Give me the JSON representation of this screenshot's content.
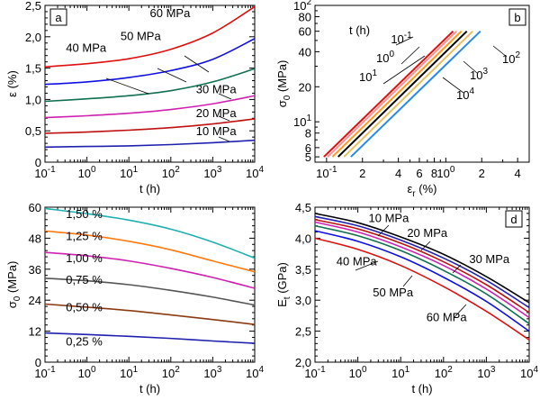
{
  "chart_data": [
    {
      "type": "line",
      "panel_label": "a",
      "xscale": "log",
      "xlim_exp": [
        -1,
        4
      ],
      "x_ticks": [
        {
          "base": "10",
          "exp": "-1"
        },
        {
          "base": "10",
          "exp": "0"
        },
        {
          "base": "10",
          "exp": "1"
        },
        {
          "base": "10",
          "exp": "2"
        },
        {
          "base": "10",
          "exp": "3"
        },
        {
          "base": "10",
          "exp": "4"
        }
      ],
      "xlabel": "t (h)",
      "ylabel": "ε (%)",
      "ylim": [
        0,
        2.5
      ],
      "y_ticks": [
        "0",
        "0,5",
        "1,0",
        "1,5",
        "2,0",
        "2,5"
      ],
      "y_tick_values": [
        0,
        0.5,
        1.0,
        1.5,
        2.0,
        2.5
      ],
      "log_t": [
        -1,
        0,
        1,
        2,
        3,
        4
      ],
      "series": [
        {
          "name": "10 MPa",
          "color": "#2020b0",
          "values": [
            0.24,
            0.25,
            0.26,
            0.28,
            0.31,
            0.35
          ],
          "label_at": [
            2.6,
            0.43
          ]
        },
        {
          "name": "20 MPa",
          "color": "#c01010",
          "values": [
            0.46,
            0.48,
            0.51,
            0.55,
            0.61,
            0.69
          ],
          "label_at": [
            2.6,
            0.72
          ]
        },
        {
          "name": "30 MPa",
          "color": "#d020b0",
          "values": [
            0.71,
            0.74,
            0.78,
            0.84,
            0.93,
            1.06
          ],
          "label_at": [
            2.6,
            1.1
          ]
        },
        {
          "name": "40 MPa",
          "color": "#107050",
          "values": [
            0.97,
            1.01,
            1.06,
            1.14,
            1.28,
            1.49
          ],
          "label_at": [
            -0.5,
            1.76
          ]
        },
        {
          "name": "50 MPa",
          "color": "#1010e0",
          "values": [
            1.24,
            1.28,
            1.35,
            1.46,
            1.64,
            1.97
          ],
          "label_at": [
            0.8,
            1.95
          ]
        },
        {
          "name": "60 MPa",
          "color": "#e01010",
          "values": [
            1.52,
            1.57,
            1.65,
            1.8,
            2.06,
            2.48
          ],
          "label_at": [
            1.5,
            2.31
          ]
        }
      ]
    },
    {
      "type": "line",
      "panel_label": "b",
      "xscale": "log",
      "yscale": "log",
      "xlabel": "εr (%)",
      "xlabel_main": "ε",
      "xlabel_sub": "r",
      "xlabel_rest": " (%)",
      "ylabel": "σ0 (MPa)",
      "xlim": [
        0.08,
        5
      ],
      "ylim": [
        4.5,
        100
      ],
      "x_ticks": [
        {
          "base": "10",
          "exp": "-1"
        },
        {
          "base": "2",
          "exp": ""
        },
        {
          "base": "4",
          "exp": ""
        },
        {
          "base": "6",
          "exp": ""
        },
        {
          "base": "8",
          "exp": ""
        },
        {
          "base": "10",
          "exp": "0"
        },
        {
          "base": "2",
          "exp": ""
        },
        {
          "base": "4",
          "exp": ""
        }
      ],
      "x_tick_values": [
        0.1,
        0.2,
        0.4,
        0.6,
        0.8,
        1,
        2,
        4
      ],
      "y_ticks": [
        {
          "base": "5",
          "exp": ""
        },
        {
          "base": "6",
          "exp": ""
        },
        {
          "base": "8",
          "exp": ""
        },
        {
          "base": "10",
          "exp": "1"
        },
        {
          "base": "20",
          "exp": ""
        },
        {
          "base": "40",
          "exp": ""
        },
        {
          "base": "60",
          "exp": ""
        },
        {
          "base": "80",
          "exp": ""
        },
        {
          "base": "10",
          "exp": "2"
        }
      ],
      "y_tick_values": [
        5,
        6,
        8,
        10,
        20,
        40,
        60,
        80,
        100
      ],
      "legend_title": "t (h)",
      "series": [
        {
          "name": "10⁻¹",
          "base": "10",
          "exp": "-1",
          "color": "#e01010",
          "x": [
            0.095,
            1.15
          ],
          "y": [
            5,
            60
          ]
        },
        {
          "name": "10⁰",
          "base": "10",
          "exp": "0",
          "color": "#ff9090",
          "x": [
            0.102,
            1.23
          ],
          "y": [
            5,
            60
          ]
        },
        {
          "name": "10¹",
          "base": "10",
          "exp": "1",
          "color": "#ff9a20",
          "x": [
            0.112,
            1.35
          ],
          "y": [
            5,
            60
          ]
        },
        {
          "name": "10²",
          "base": "10",
          "exp": "2",
          "color": "#000000",
          "x": [
            0.125,
            1.5
          ],
          "y": [
            5,
            60
          ]
        },
        {
          "name": "10³",
          "base": "10",
          "exp": "3",
          "color": "#e8c060",
          "x": [
            0.14,
            1.68
          ],
          "y": [
            5,
            60
          ]
        },
        {
          "name": "10⁴",
          "base": "10",
          "exp": "4",
          "color": "#2a8ae8",
          "x": [
            0.16,
            1.95
          ],
          "y": [
            5,
            60
          ]
        }
      ]
    },
    {
      "type": "line",
      "panel_label": "c",
      "xscale": "log",
      "xlim_exp": [
        -1,
        4
      ],
      "x_ticks": [
        {
          "base": "10",
          "exp": "-1"
        },
        {
          "base": "10",
          "exp": "0"
        },
        {
          "base": "10",
          "exp": "1"
        },
        {
          "base": "10",
          "exp": "2"
        },
        {
          "base": "10",
          "exp": "3"
        },
        {
          "base": "10",
          "exp": "4"
        }
      ],
      "xlabel": "t (h)",
      "ylabel": "σ0 (MPa)",
      "ylim": [
        0,
        60
      ],
      "y_ticks": [
        "0",
        "12",
        "24",
        "36",
        "48",
        "60"
      ],
      "y_tick_values": [
        0,
        12,
        24,
        36,
        48,
        60
      ],
      "log_t": [
        -1,
        0,
        1,
        2,
        3,
        4
      ],
      "series": [
        {
          "name": "0,25 %",
          "color": "#2020b0",
          "values": [
            11.3,
            10.7,
            10,
            9.2,
            8.2,
            7.3
          ],
          "label_at": [
            -0.5,
            6.5
          ]
        },
        {
          "name": "0,50 %",
          "color": "#8b3a10",
          "values": [
            22.5,
            21.3,
            20,
            18.3,
            16.5,
            14.6
          ],
          "label_at": [
            -0.5,
            19.7
          ]
        },
        {
          "name": "0,75 %",
          "color": "#555555",
          "values": [
            32.5,
            31.5,
            30,
            27.8,
            25.2,
            22.1
          ],
          "label_at": [
            -0.5,
            30.3
          ]
        },
        {
          "name": "1,00 %",
          "color": "#d020b0",
          "values": [
            42.5,
            41.2,
            39.2,
            36.3,
            32.8,
            28.6
          ],
          "label_at": [
            -0.5,
            38.8
          ]
        },
        {
          "name": "1,25 %",
          "color": "#ff7a10",
          "values": [
            50.8,
            49.2,
            46.8,
            43.5,
            39.2,
            35
          ],
          "label_at": [
            -0.5,
            47.2
          ]
        },
        {
          "name": "1,50 %",
          "color": "#20b0b0",
          "values": [
            59.5,
            57.5,
            55,
            51.5,
            46.5,
            40.3
          ],
          "label_at": [
            -0.5,
            55.8
          ]
        }
      ]
    },
    {
      "type": "line",
      "panel_label": "d",
      "xscale": "log",
      "xlim_exp": [
        -1,
        4
      ],
      "x_ticks": [
        {
          "base": "10",
          "exp": "-1"
        },
        {
          "base": "10",
          "exp": "0"
        },
        {
          "base": "10",
          "exp": "1"
        },
        {
          "base": "10",
          "exp": "2"
        },
        {
          "base": "10",
          "exp": "3"
        },
        {
          "base": "10",
          "exp": "4"
        }
      ],
      "xlabel": "t (h)",
      "ylabel": "Et (GPa)",
      "ylim": [
        2.0,
        4.5
      ],
      "y_ticks": [
        "2,0",
        "2,5",
        "3,0",
        "3,5",
        "4,0",
        "4,5"
      ],
      "y_tick_values": [
        2.0,
        2.5,
        3.0,
        3.5,
        4.0,
        4.5
      ],
      "log_t": [
        -1,
        0,
        1,
        2,
        3,
        4
      ],
      "series": [
        {
          "name": "black",
          "color": "#000000",
          "values": [
            4.4,
            4.25,
            4.02,
            3.74,
            3.38,
            2.96
          ],
          "show_label": false
        },
        {
          "name": "10 MPa",
          "color": "#2020b0",
          "values": [
            4.35,
            4.2,
            3.97,
            3.68,
            3.32,
            2.88
          ],
          "label_at": [
            0.25,
            4.26
          ]
        },
        {
          "name": "20 MPa",
          "color": "#c01010",
          "values": [
            4.3,
            4.15,
            3.92,
            3.62,
            3.25,
            2.8
          ],
          "label_at": [
            1.15,
            4.02
          ]
        },
        {
          "name": "30 MPa",
          "color": "#d020b0",
          "values": [
            4.26,
            4.1,
            3.86,
            3.56,
            3.18,
            2.72
          ],
          "label_at": [
            2.6,
            3.6
          ]
        },
        {
          "name": "40 MPa",
          "color": "#107050",
          "values": [
            4.2,
            4.04,
            3.8,
            3.48,
            3.1,
            2.62
          ],
          "label_at": [
            -0.5,
            3.56
          ]
        },
        {
          "name": "50 MPa",
          "color": "#1010e0",
          "values": [
            4.12,
            3.95,
            3.7,
            3.37,
            2.98,
            2.5
          ],
          "label_at": [
            0.35,
            3.06
          ]
        },
        {
          "name": "60 MPa",
          "color": "#e01010",
          "values": [
            4.0,
            3.82,
            3.56,
            3.22,
            2.82,
            2.36
          ],
          "label_at": [
            1.6,
            2.66
          ]
        }
      ]
    }
  ]
}
